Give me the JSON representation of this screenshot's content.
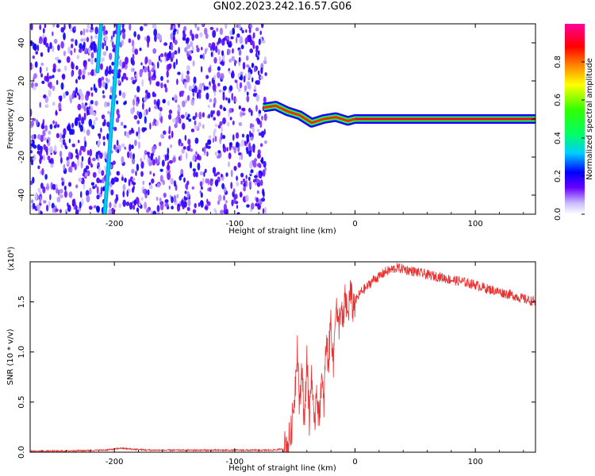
{
  "figure": {
    "title": "GN02.2023.242.16.57.G06"
  },
  "colors": {
    "snr_line": "#e83232",
    "axes": "#000000"
  },
  "chart_data": [
    {
      "type": "heatmap",
      "title": "GN02.2023.242.16.57.G06",
      "xlabel": "Height of straight line (km)",
      "ylabel": "Frequency (Hz)",
      "xlim": [
        -270,
        150
      ],
      "ylim": [
        -50,
        50
      ],
      "xticks": [
        -200,
        -100,
        0,
        100
      ],
      "yticks": [
        -40,
        -20,
        0,
        20,
        40
      ],
      "xtick_labels": [
        "-200",
        "-100",
        "0",
        "100"
      ],
      "ytick_labels": [
        "-40",
        "-20",
        "0",
        "20",
        "40"
      ],
      "colormap": "rainbow",
      "colorbar": {
        "label": "Normalized spectral amplitude",
        "range": [
          0.0,
          1.0
        ],
        "ticks": [
          0.0,
          0.2,
          0.4,
          0.6,
          0.8
        ],
        "tick_labels": [
          "0.0",
          "0.2",
          "0.4",
          "0.6",
          "0.8"
        ]
      },
      "features": [
        {
          "name": "noise",
          "x_range": [
            -270,
            -74
          ],
          "freq_range": [
            -50,
            50
          ],
          "amplitude": 0.15
        },
        {
          "name": "streak",
          "x": [
            -208,
            -205,
            -202,
            -199,
            -196
          ],
          "freq": [
            -50,
            -25,
            0,
            25,
            50
          ],
          "amplitude": 0.3
        },
        {
          "name": "streak",
          "x": [
            -214,
            -211
          ],
          "freq": [
            25,
            50
          ],
          "amplitude": 0.3
        },
        {
          "name": "signal",
          "x": [
            -76,
            -66,
            -56,
            -46,
            -36,
            -26,
            -16,
            -6,
            0,
            150
          ],
          "freq": [
            6,
            7,
            4,
            2,
            -2,
            0,
            1,
            -1,
            0,
            0
          ],
          "amplitude": 0.9
        }
      ],
      "grid": false
    },
    {
      "type": "line",
      "xlabel": "Height of straight line (km)",
      "ylabel": "SNR (10 * v/v)",
      "scale_label": "(x10⁴)",
      "xlim": [
        -270,
        150
      ],
      "ylim": [
        0,
        1.9
      ],
      "xticks": [
        -200,
        -100,
        0,
        100
      ],
      "yticks": [
        0.0,
        0.5,
        1.0,
        1.5
      ],
      "xtick_labels": [
        "-200",
        "-100",
        "0",
        "100"
      ],
      "ytick_labels": [
        "0.0",
        "0.5",
        "1.0",
        "1.5"
      ],
      "series": [
        {
          "x": [
            -270,
            -250,
            -230,
            -210,
            -200,
            -195,
            -185,
            -170,
            -150,
            -130,
            -110,
            -90,
            -70,
            -60,
            -56,
            -53,
            -50,
            -48,
            -46,
            -44,
            -42,
            -40,
            -38,
            -36,
            -34,
            -32,
            -30,
            -28,
            -26,
            -24,
            -22,
            -20,
            -18,
            -16,
            -14,
            -12,
            -10,
            -8,
            -6,
            -4,
            -2,
            0,
            5,
            10,
            15,
            20,
            25,
            30,
            35,
            40,
            50,
            60,
            70,
            80,
            90,
            100,
            110,
            120,
            130,
            140,
            150
          ],
          "y": [
            0.01,
            0.01,
            0.015,
            0.02,
            0.03,
            0.04,
            0.03,
            0.02,
            0.02,
            0.02,
            0.02,
            0.02,
            0.02,
            0.03,
            0.08,
            0.2,
            0.6,
            1.1,
            0.4,
            0.9,
            0.2,
            1.0,
            0.3,
            0.85,
            0.15,
            0.7,
            0.3,
            0.75,
            0.45,
            1.1,
            0.9,
            1.35,
            0.85,
            1.55,
            1.2,
            1.45,
            1.25,
            1.55,
            1.35,
            1.6,
            1.45,
            1.5,
            1.6,
            1.65,
            1.72,
            1.75,
            1.8,
            1.82,
            1.84,
            1.83,
            1.8,
            1.77,
            1.75,
            1.72,
            1.7,
            1.67,
            1.63,
            1.6,
            1.57,
            1.53,
            1.5
          ]
        }
      ],
      "grid": false
    }
  ]
}
